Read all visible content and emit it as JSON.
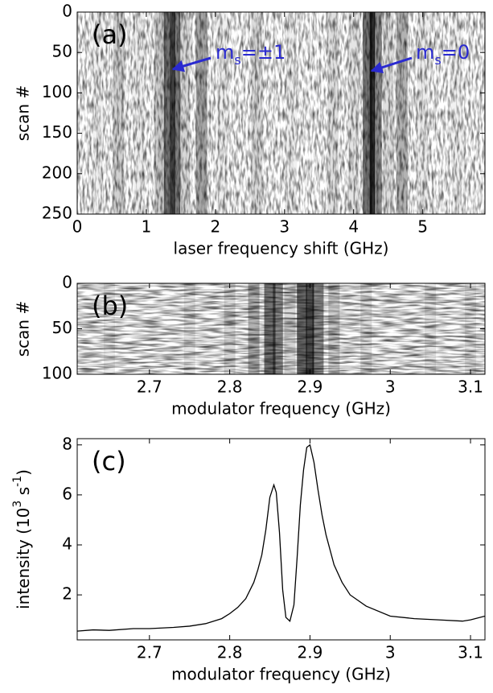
{
  "chart_data": [
    {
      "type": "heatmap",
      "panel_label": "(a)",
      "xlabel": "laser frequency shift (GHz)",
      "ylabel": "scan #",
      "xlim": [
        0,
        5.9
      ],
      "ylim": [
        0,
        250
      ],
      "y_reversed": true,
      "xticks": [
        0,
        1,
        2,
        3,
        4,
        5
      ],
      "yticks": [
        0,
        50,
        100,
        150,
        200,
        250
      ],
      "x": [
        0.3,
        0.6,
        0.9,
        1.2,
        1.3,
        1.38,
        1.45,
        1.55,
        1.8,
        2.1,
        2.6,
        3.1,
        3.7,
        4.0,
        4.2,
        4.27,
        4.35,
        4.5,
        4.7,
        5.0,
        5.5
      ],
      "values": [
        0.05,
        0.18,
        0.06,
        0.2,
        0.55,
        0.75,
        0.5,
        0.15,
        0.35,
        0.06,
        0.14,
        0.06,
        0.12,
        0.1,
        0.55,
        0.8,
        0.45,
        0.12,
        0.3,
        0.07,
        0.05
      ],
      "color": "#000000",
      "annotations": [
        {
          "text": [
            "m",
            "s",
            "=±1"
          ],
          "color": "#2a2ad0"
        },
        {
          "text": [
            "m",
            "s",
            "=0"
          ],
          "color": "#2a2ad0"
        }
      ]
    },
    {
      "type": "heatmap",
      "panel_label": "(b)",
      "xlabel": "modulator frequency (GHz)",
      "ylabel": "scan #",
      "xlim": [
        2.61,
        3.118
      ],
      "ylim": [
        0,
        100
      ],
      "y_reversed": true,
      "xticks": [
        2.7,
        2.8,
        2.9,
        {
          "value": 3,
          "label": "3"
        },
        3.1
      ],
      "yticks": [
        0,
        50,
        100
      ],
      "x": [
        2.65,
        2.75,
        2.8,
        2.83,
        2.85,
        2.86,
        2.875,
        2.89,
        2.9,
        2.91,
        2.93,
        2.97,
        3.05,
        3.1
      ],
      "values": [
        0.08,
        0.1,
        0.15,
        0.3,
        0.55,
        0.45,
        0.15,
        0.6,
        0.7,
        0.45,
        0.2,
        0.12,
        0.1,
        0.08
      ],
      "color": "#000000"
    },
    {
      "type": "line",
      "panel_label": "(c)",
      "xlabel": "modulator frequency (GHz)",
      "ylabel": [
        "intensity (10",
        "3",
        " s",
        "-1",
        ")"
      ],
      "xlim": [
        2.61,
        3.118
      ],
      "ylim": [
        0.2,
        8.25
      ],
      "xticks": [
        2.7,
        2.8,
        2.9,
        {
          "value": 3,
          "label": "3"
        },
        3.1
      ],
      "yticks": [
        2,
        4,
        6,
        8
      ],
      "x": [
        2.61,
        2.63,
        2.65,
        2.68,
        2.7,
        2.73,
        2.75,
        2.77,
        2.78,
        2.79,
        2.8,
        2.81,
        2.82,
        2.83,
        2.835,
        2.84,
        2.845,
        2.85,
        2.855,
        2.858,
        2.862,
        2.866,
        2.87,
        2.875,
        2.88,
        2.884,
        2.888,
        2.892,
        2.896,
        2.9,
        2.905,
        2.91,
        2.915,
        2.92,
        2.93,
        2.94,
        2.95,
        2.97,
        3.0,
        3.03,
        3.06,
        3.09,
        3.1,
        3.118
      ],
      "series": [
        {
          "name": "intensity",
          "color": "#000000",
          "values": [
            0.55,
            0.6,
            0.58,
            0.65,
            0.65,
            0.7,
            0.75,
            0.85,
            0.95,
            1.05,
            1.25,
            1.5,
            1.85,
            2.5,
            3.0,
            3.6,
            4.6,
            5.9,
            6.4,
            6.1,
            4.5,
            2.2,
            1.1,
            0.95,
            1.6,
            3.5,
            5.6,
            7.0,
            7.9,
            8.0,
            7.3,
            6.2,
            5.2,
            4.4,
            3.2,
            2.5,
            2.0,
            1.55,
            1.15,
            1.05,
            1.0,
            0.95,
            1.0,
            1.15
          ]
        }
      ]
    }
  ]
}
